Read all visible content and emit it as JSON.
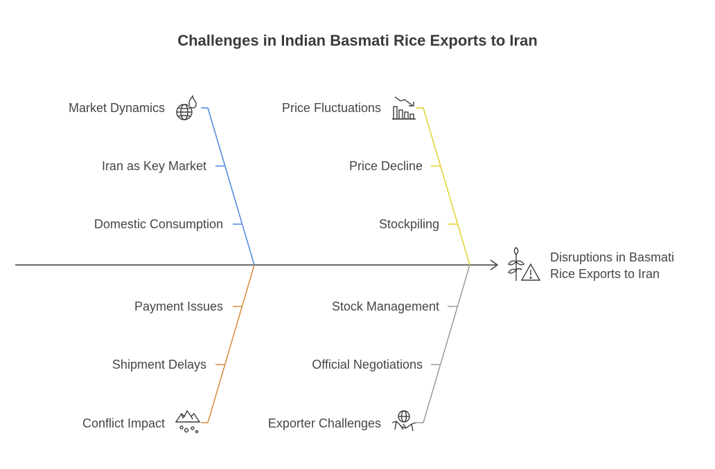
{
  "title": "Challenges in Indian Basmati Rice Exports to Iran",
  "effect": {
    "line1": "Disruptions in Basmati",
    "line2": "Rice Exports to Iran",
    "icon": "rice-warning-icon"
  },
  "categories": [
    {
      "id": "market",
      "name": "Market Dynamics",
      "icon": "globe-fire-icon",
      "color": "#4a86e0",
      "causes": [
        "Iran as Key Market",
        "Domestic Consumption"
      ]
    },
    {
      "id": "price",
      "name": "Price Fluctuations",
      "icon": "declining-chart-icon",
      "color": "#e2cf2a",
      "causes": [
        "Price Decline",
        "Stockpiling"
      ]
    },
    {
      "id": "conflict",
      "name": "Conflict Impact",
      "icon": "explosion-icon",
      "color": "#d98a3a",
      "causes": [
        "Payment Issues",
        "Shipment Delays"
      ]
    },
    {
      "id": "exporter",
      "name": "Exporter Challenges",
      "icon": "handshake-globe-icon",
      "color": "#9a9a9a",
      "causes": [
        "Stock Management",
        "Official Negotiations"
      ]
    }
  ],
  "spine_color": "#3a3a3a"
}
